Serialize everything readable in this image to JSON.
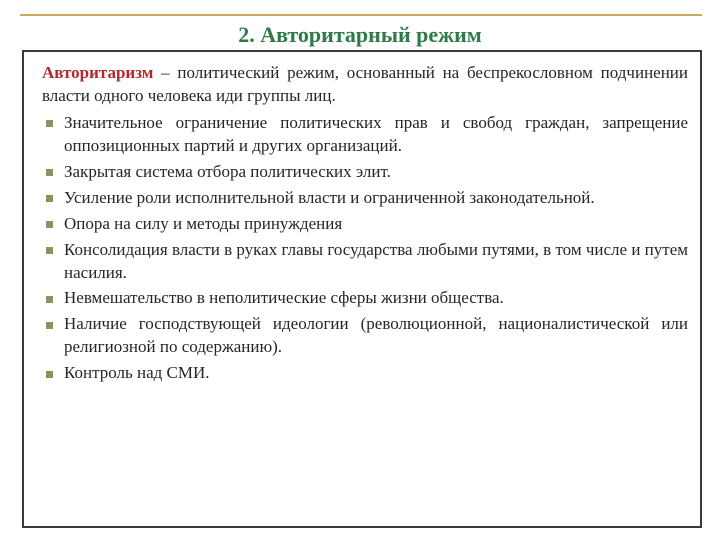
{
  "colors": {
    "accent_line": "#cda85a",
    "heading": "#2f7a4a",
    "term": "#b02a2a",
    "body_text": "#262626",
    "bullet": "#8f8f64",
    "box_border": "#3a3a3a"
  },
  "fontsizes": {
    "heading": 22,
    "body": 17
  },
  "heading": "2. Авторитарный режим",
  "definition": {
    "term": "Авторитаризм",
    "rest": " – политический режим, основанный на беспрекословном подчинении власти одного человека иди группы лиц."
  },
  "bullets": [
    "Значительное ограничение политических прав и свобод граждан, запрещение оппозиционных партий и других организаций.",
    " Закрытая система отбора политических элит.",
    "Усиление роли исполнительной власти и ограниченной законодательной.",
    " Опора на силу и методы принуждения",
    "Консолидация власти в руках главы государства любыми путями, в том числе и путем насилия.",
    " Невмешательство в неполитические сферы жизни общества.",
    "Наличие господствующей идеологии (революционной, националистической или религиозной по содержанию).",
    " Контроль над СМИ."
  ]
}
